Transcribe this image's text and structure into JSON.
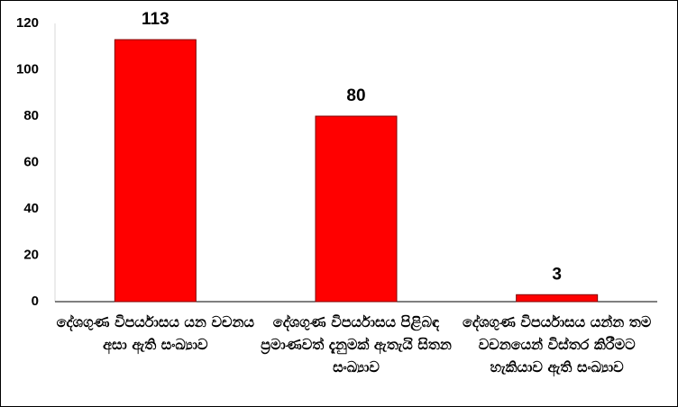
{
  "chart_data": {
    "type": "bar",
    "categories": [
      "දේශගුණ විපර්යාසය යන වචනය අසා ඇති සංඛ්‍යාව",
      "දේශගුණ විපර්යාසය පිළිබඳ ප්‍රමාණවත් දැනුමක් ඇතැයි සිතන සංඛ්‍යාව",
      "දේශගුණ විපර්යාසය යන්න තම වචනයෙන් විස්තර කිරීමට හැකියාව ඇති සංඛ්‍යාව"
    ],
    "values": [
      113,
      80,
      3
    ],
    "color": "#ff0000",
    "ylim": [
      0,
      120
    ],
    "yticks": [
      0,
      20,
      40,
      60,
      80,
      100,
      120
    ],
    "grid": false
  }
}
